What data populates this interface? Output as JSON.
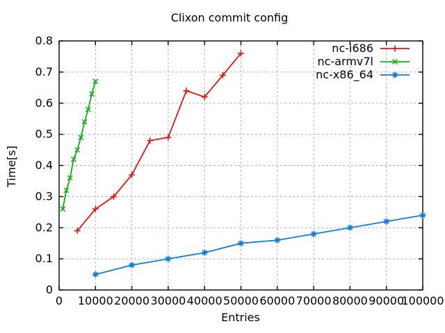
{
  "title": "Clixon commit config",
  "colors": {
    "background": "#ffffff",
    "grid": "#b4b4b4",
    "axis": "#000000",
    "series_red": "#e8140c",
    "series_green": "#15ad15",
    "series_blue": "#0f7bdc"
  },
  "chart_data": {
    "type": "line",
    "title": "Clixon commit config",
    "xlabel": "Entries",
    "ylabel": "Time[s]",
    "xlim": [
      0,
      100000
    ],
    "ylim": [
      0,
      0.8
    ],
    "grid": true,
    "legend_position": "top-right-inside",
    "xticks": [
      {
        "v": 0,
        "label": "0"
      },
      {
        "v": 10000,
        "label": "10000"
      },
      {
        "v": 20000,
        "label": "20000"
      },
      {
        "v": 30000,
        "label": "30000"
      },
      {
        "v": 40000,
        "label": "40000"
      },
      {
        "v": 50000,
        "label": "50000"
      },
      {
        "v": 60000,
        "label": "60000"
      },
      {
        "v": 70000,
        "label": "70000"
      },
      {
        "v": 80000,
        "label": "80000"
      },
      {
        "v": 90000,
        "label": "90000"
      },
      {
        "v": 100000,
        "label": "100000"
      }
    ],
    "yticks": [
      {
        "v": 0,
        "label": "0"
      },
      {
        "v": 0.1,
        "label": "0.1"
      },
      {
        "v": 0.2,
        "label": "0.2"
      },
      {
        "v": 0.3,
        "label": "0.3"
      },
      {
        "v": 0.4,
        "label": "0.4"
      },
      {
        "v": 0.5,
        "label": "0.5"
      },
      {
        "v": 0.6,
        "label": "0.6"
      },
      {
        "v": 0.7,
        "label": "0.7"
      },
      {
        "v": 0.8,
        "label": "0.8"
      }
    ],
    "series": [
      {
        "name": "nc-i686",
        "color": "#e8140c",
        "marker": "plus",
        "points": [
          [
            5000,
            0.19
          ],
          [
            10000,
            0.26
          ],
          [
            15000,
            0.3
          ],
          [
            20000,
            0.37
          ],
          [
            25000,
            0.48
          ],
          [
            30000,
            0.49
          ],
          [
            35000,
            0.64
          ],
          [
            40000,
            0.62
          ],
          [
            45000,
            0.69
          ],
          [
            50000,
            0.76
          ]
        ]
      },
      {
        "name": "nc-armv7l",
        "color": "#15ad15",
        "marker": "cross",
        "points": [
          [
            1000,
            0.26
          ],
          [
            2000,
            0.32
          ],
          [
            3000,
            0.36
          ],
          [
            4000,
            0.42
          ],
          [
            5000,
            0.45
          ],
          [
            6000,
            0.49
          ],
          [
            7000,
            0.54
          ],
          [
            8000,
            0.58
          ],
          [
            9000,
            0.63
          ],
          [
            10000,
            0.67
          ]
        ]
      },
      {
        "name": "nc-x86_64",
        "color": "#0f7bdc",
        "marker": "asterisk",
        "points": [
          [
            10000,
            0.05
          ],
          [
            20000,
            0.08
          ],
          [
            30000,
            0.1
          ],
          [
            40000,
            0.12
          ],
          [
            50000,
            0.15
          ],
          [
            60000,
            0.16
          ],
          [
            70000,
            0.18
          ],
          [
            80000,
            0.2
          ],
          [
            90000,
            0.22
          ],
          [
            100000,
            0.24
          ]
        ]
      }
    ]
  }
}
